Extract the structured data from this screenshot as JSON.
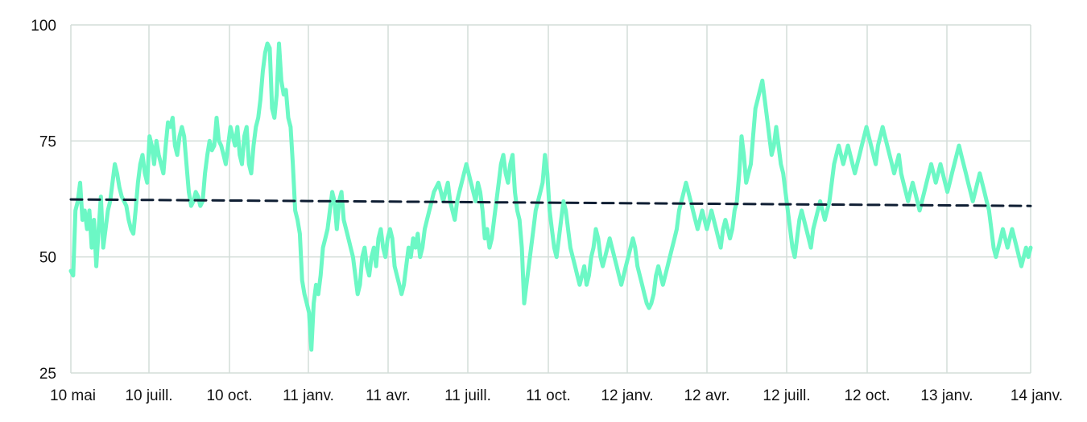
{
  "chart_data": {
    "type": "line",
    "title": "",
    "xlabel": "",
    "ylabel": "",
    "ylim": [
      25,
      100
    ],
    "yticks": [
      25,
      50,
      75,
      100
    ],
    "x_tick_labels": [
      "10 mai",
      "10 juill.",
      "10 oct.",
      "11 janv.",
      "11 avr.",
      "11 juill.",
      "11 oct.",
      "12 janv.",
      "12 avr.",
      "12 juill.",
      "12 oct.",
      "13 janv.",
      "14 janv."
    ],
    "grid": true,
    "legend": "none",
    "colors": {
      "series": "#6cf8c5",
      "trend": "#0f1e33",
      "grid": "#d3ddd9"
    },
    "series": [
      {
        "style": "solid",
        "values": [
          47,
          46,
          60,
          62,
          66,
          58,
          60,
          56,
          60,
          52,
          58,
          48,
          56,
          63,
          52,
          56,
          60,
          62,
          66,
          70,
          68,
          65,
          63,
          62,
          61,
          58,
          56,
          55,
          60,
          66,
          70,
          72,
          68,
          66,
          76,
          74,
          70,
          75,
          72,
          70,
          68,
          74,
          79,
          78,
          80,
          74,
          72,
          76,
          78,
          76,
          70,
          64,
          61,
          62,
          64,
          63,
          61,
          62,
          68,
          72,
          75,
          73,
          74,
          80,
          75,
          74,
          72,
          70,
          74,
          78,
          76,
          74,
          78,
          72,
          70,
          76,
          78,
          70,
          68,
          74,
          78,
          80,
          84,
          90,
          94,
          96,
          95,
          82,
          80,
          85,
          96,
          88,
          85,
          86,
          80,
          78,
          70,
          60,
          58,
          55,
          45,
          42,
          40,
          38,
          30,
          40,
          44,
          42,
          46,
          52,
          54,
          56,
          60,
          64,
          62,
          56,
          62,
          64,
          58,
          56,
          54,
          52,
          50,
          46,
          42,
          44,
          50,
          52,
          48,
          46,
          50,
          52,
          48,
          54,
          56,
          52,
          50,
          54,
          56,
          54,
          48,
          46,
          44,
          42,
          44,
          48,
          52,
          50,
          54,
          52,
          55,
          50,
          52,
          56,
          58,
          60,
          62,
          64,
          65,
          66,
          64,
          62,
          64,
          66,
          62,
          60,
          58,
          62,
          64,
          66,
          68,
          70,
          68,
          66,
          64,
          62,
          66,
          64,
          60,
          54,
          56,
          52,
          54,
          58,
          62,
          66,
          70,
          72,
          68,
          66,
          70,
          72,
          64,
          60,
          58,
          52,
          40,
          44,
          48,
          52,
          56,
          60,
          62,
          64,
          66,
          72,
          68,
          60,
          56,
          52,
          50,
          54,
          58,
          62,
          60,
          56,
          52,
          50,
          48,
          46,
          44,
          46,
          48,
          44,
          46,
          50,
          52,
          56,
          54,
          50,
          48,
          50,
          52,
          54,
          52,
          50,
          48,
          46,
          44,
          46,
          48,
          50,
          52,
          54,
          52,
          48,
          46,
          44,
          42,
          40,
          39,
          40,
          42,
          46,
          48,
          46,
          44,
          46,
          48,
          50,
          52,
          54,
          56,
          60,
          62,
          64,
          66,
          64,
          62,
          60,
          58,
          56,
          58,
          60,
          58,
          56,
          58,
          60,
          58,
          56,
          54,
          52,
          56,
          58,
          56,
          54,
          56,
          60,
          62,
          68,
          76,
          72,
          66,
          68,
          70,
          76,
          82,
          84,
          86,
          88,
          84,
          80,
          76,
          72,
          74,
          78,
          74,
          70,
          68,
          64,
          60,
          56,
          52,
          50,
          54,
          58,
          60,
          58,
          56,
          54,
          52,
          56,
          58,
          60,
          62,
          60,
          58,
          60,
          62,
          66,
          70,
          72,
          74,
          72,
          70,
          72,
          74,
          72,
          70,
          68,
          70,
          72,
          74,
          76,
          78,
          76,
          74,
          72,
          70,
          74,
          76,
          78,
          76,
          74,
          72,
          70,
          68,
          70,
          72,
          68,
          66,
          64,
          62,
          64,
          66,
          64,
          62,
          60,
          62,
          64,
          66,
          68,
          70,
          68,
          66,
          68,
          70,
          68,
          66,
          64,
          66,
          68,
          70,
          72,
          74,
          72,
          70,
          68,
          66,
          64,
          62,
          64,
          66,
          68,
          66,
          64,
          62,
          60,
          56,
          52,
          50,
          52,
          54,
          56,
          54,
          52,
          54,
          56,
          54,
          52,
          50,
          48,
          50,
          52,
          50,
          52
        ]
      },
      {
        "style": "dashed",
        "values": [
          62.4,
          61
        ]
      }
    ]
  }
}
